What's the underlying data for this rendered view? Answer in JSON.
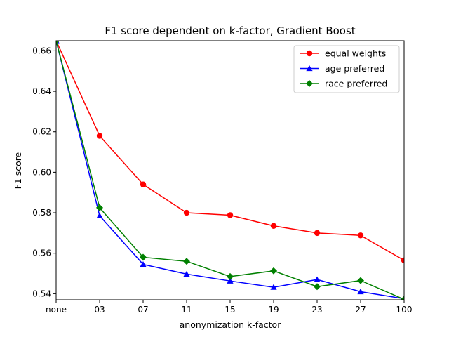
{
  "chart_data": {
    "type": "line",
    "title": "F1 score dependent on k-factor, Gradient Boost",
    "xlabel": "anonymization k-factor",
    "ylabel": "F1 score",
    "categories": [
      "none",
      "03",
      "07",
      "11",
      "15",
      "19",
      "23",
      "27",
      "100"
    ],
    "ylim": [
      0.537,
      0.665
    ],
    "yticks": [
      0.54,
      0.56,
      0.58,
      0.6,
      0.62,
      0.64,
      0.66
    ],
    "ytick_labels": [
      "0.54",
      "0.56",
      "0.58",
      "0.60",
      "0.62",
      "0.64",
      "0.66"
    ],
    "legend_position": "top-right",
    "grid": false,
    "series": [
      {
        "name": "equal weights",
        "color": "#ff0000",
        "marker": "circle",
        "values": [
          0.665,
          0.618,
          0.594,
          0.58,
          0.5788,
          0.5735,
          0.57,
          0.5688,
          0.5565
        ]
      },
      {
        "name": "age preferred",
        "color": "#0000ff",
        "marker": "triangle",
        "values": [
          0.665,
          0.5785,
          0.5545,
          0.5497,
          0.5463,
          0.5432,
          0.547,
          0.541,
          0.5375
        ]
      },
      {
        "name": "race preferred",
        "color": "#008000",
        "marker": "diamond",
        "values": [
          0.665,
          0.5825,
          0.558,
          0.556,
          0.5485,
          0.5513,
          0.5435,
          0.5465,
          0.5372
        ]
      }
    ]
  }
}
